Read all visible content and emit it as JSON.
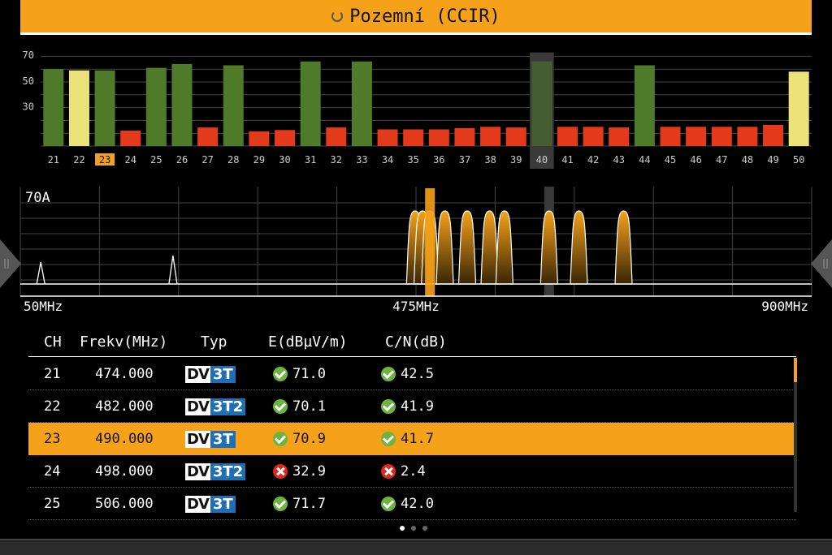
{
  "header": {
    "title": "Pozemní (CCIR)"
  },
  "colors": {
    "accent": "#f5a21a",
    "good": "#4f7a2a",
    "warn": "#ece27a",
    "bad": "#e23a1a",
    "grid": "#555555"
  },
  "bar_chart": {
    "yticks": [
      "70",
      "50",
      "30"
    ],
    "channels": [
      "21",
      "22",
      "23",
      "24",
      "25",
      "26",
      "27",
      "28",
      "29",
      "30",
      "31",
      "32",
      "33",
      "34",
      "35",
      "36",
      "37",
      "38",
      "39",
      "40",
      "41",
      "42",
      "43",
      "44",
      "45",
      "46",
      "47",
      "48",
      "49",
      "50"
    ],
    "levels": [
      60.0,
      59.0,
      59.0,
      12.0,
      61.0,
      64.0,
      14.5,
      63.0,
      11.5,
      12.5,
      66.0,
      14.5,
      66.0,
      13.0,
      13.0,
      13.0,
      14.0,
      15.0,
      14.5,
      66.0,
      15.0,
      15.0,
      14.5,
      63.0,
      15.0,
      15.0,
      15.0,
      15.0,
      16.5,
      58.0
    ],
    "status": [
      "good",
      "warn",
      "good",
      "bad",
      "good",
      "good",
      "bad",
      "good",
      "bad",
      "bad",
      "good",
      "bad",
      "good",
      "bad",
      "bad",
      "bad",
      "bad",
      "bad",
      "bad",
      "good",
      "bad",
      "bad",
      "bad",
      "good",
      "bad",
      "bad",
      "bad",
      "bad",
      "bad",
      "warn"
    ],
    "selected": "23",
    "marked": "40"
  },
  "spectrum": {
    "level_label": "70A",
    "freq_start": "50MHz",
    "freq_mid": "475MHz",
    "freq_end": "900MHz",
    "start_mhz": 50,
    "end_mhz": 900,
    "cursor_mhz": 490,
    "marker_mhz": 618,
    "noise_peaks_mhz": [
      72,
      214
    ],
    "carriers_mhz": [
      474,
      482,
      490,
      506,
      530,
      554,
      570,
      618,
      650,
      698
    ]
  },
  "table": {
    "columns": [
      "CH",
      "Frekv(MHz)",
      "Typ",
      "E(dBµV/m)",
      "C/N(dB)"
    ],
    "rows": [
      {
        "ch": "21",
        "freq": "474.000",
        "type_a": "DV",
        "type_b": "3T",
        "e": "71.0",
        "e_ok": true,
        "cn": "42.5",
        "cn_ok": true,
        "selected": false
      },
      {
        "ch": "22",
        "freq": "482.000",
        "type_a": "DV",
        "type_b": "3T2",
        "e": "70.1",
        "e_ok": true,
        "cn": "41.9",
        "cn_ok": true,
        "selected": false
      },
      {
        "ch": "23",
        "freq": "490.000",
        "type_a": "DV",
        "type_b": "3T",
        "e": "70.9",
        "e_ok": true,
        "cn": "41.7",
        "cn_ok": true,
        "selected": true
      },
      {
        "ch": "24",
        "freq": "498.000",
        "type_a": "DV",
        "type_b": "3T2",
        "e": "32.9",
        "e_ok": false,
        "cn": "2.4",
        "cn_ok": false,
        "selected": false
      },
      {
        "ch": "25",
        "freq": "506.000",
        "type_a": "DV",
        "type_b": "3T",
        "e": "71.7",
        "e_ok": true,
        "cn": "42.0",
        "cn_ok": true,
        "selected": false
      }
    ]
  },
  "pager": {
    "pages": 3,
    "current": 1
  }
}
